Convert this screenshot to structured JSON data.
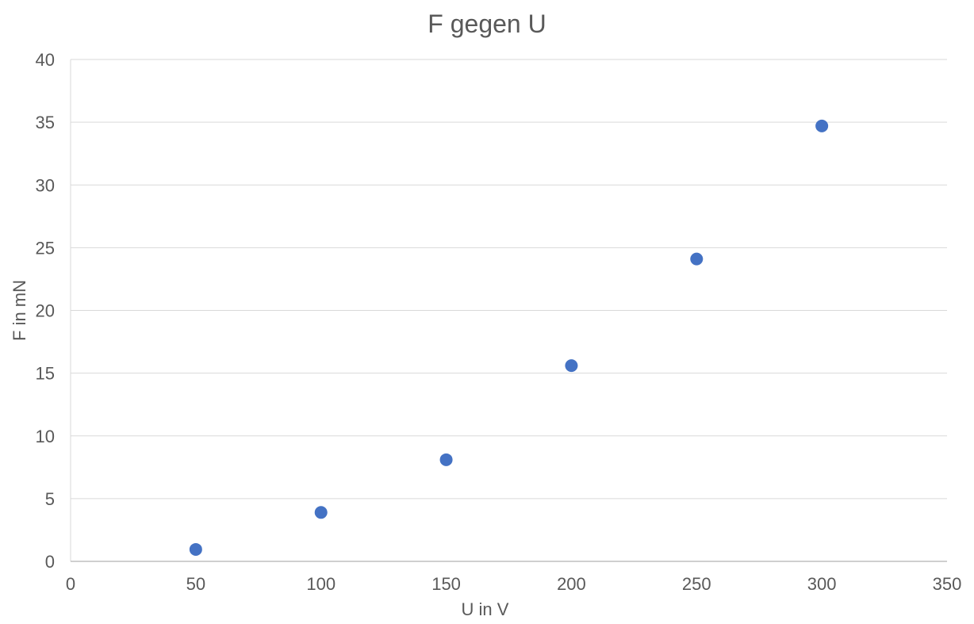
{
  "chart_data": {
    "type": "scatter",
    "title": "F gegen U",
    "xlabel": "U in V",
    "ylabel": "F in mN",
    "xlim": [
      0,
      350
    ],
    "ylim": [
      0,
      40
    ],
    "x_ticks": [
      0,
      50,
      100,
      150,
      200,
      250,
      300,
      350
    ],
    "y_ticks": [
      0,
      5,
      10,
      15,
      20,
      25,
      30,
      35,
      40
    ],
    "grid": true,
    "legend": "none",
    "series": [
      {
        "color": "#4472C4",
        "points": [
          {
            "x": 50,
            "y": 0.95
          },
          {
            "x": 100,
            "y": 3.9
          },
          {
            "x": 150,
            "y": 8.1
          },
          {
            "x": 200,
            "y": 15.6
          },
          {
            "x": 250,
            "y": 24.1
          },
          {
            "x": 300,
            "y": 34.7
          }
        ]
      }
    ]
  }
}
